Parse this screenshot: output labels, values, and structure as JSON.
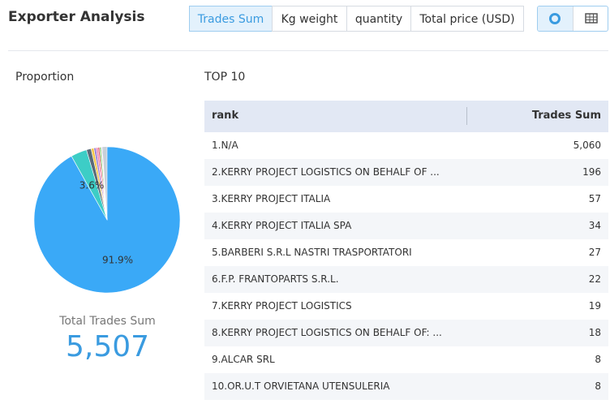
{
  "header": {
    "title": "Exporter Analysis",
    "tabs": [
      "Trades Sum",
      "Kg weight",
      "quantity",
      "Total price (USD)"
    ]
  },
  "left": {
    "title": "Proportion",
    "pie_value_labels": [
      "91.9%",
      "3.6%"
    ],
    "slice_colors": [
      "#3aa9f7",
      "#3dcdc6",
      "#5a6a7a",
      "#f5c84a",
      "#9a7fd6",
      "#f07fb0",
      "#e05a6a",
      "#7ac96a",
      "#f29a4a",
      "#4a78c8"
    ],
    "total_label": "Total Trades Sum",
    "total": {
      "value": 5507,
      "label": "5,507"
    }
  },
  "table": {
    "title": "TOP 10",
    "columns": [
      "rank",
      "Trades Sum"
    ],
    "rows": [
      [
        "1.N/A",
        {
          "value": 5060,
          "label": "5,060"
        }
      ],
      [
        "2.KERRY PROJECT LOGISTICS ON BEHALF OF ...",
        {
          "value": 196,
          "label": "196"
        }
      ],
      [
        "3.KERRY PROJECT ITALIA",
        {
          "value": 57,
          "label": "57"
        }
      ],
      [
        "4.KERRY PROJECT ITALIA SPA",
        {
          "value": 34,
          "label": "34"
        }
      ],
      [
        "5.BARBERI S.R.L NASTRI TRASPORTATORI",
        {
          "value": 27,
          "label": "27"
        }
      ],
      [
        "6.F.P. FRANTOPARTS S.R.L.",
        {
          "value": 22,
          "label": "22"
        }
      ],
      [
        "7.KERRY PROJECT LOGISTICS",
        {
          "value": 19,
          "label": "19"
        }
      ],
      [
        "8.KERRY PROJECT LOGISTICS ON BEHALF OF: ...",
        {
          "value": 18,
          "label": "18"
        }
      ],
      [
        "9.ALCAR SRL",
        {
          "value": 8,
          "label": "8"
        }
      ],
      [
        "10.OR.U.T ORVIETANA UTENSULERIA",
        {
          "value": 8,
          "label": "8"
        }
      ]
    ]
  }
}
